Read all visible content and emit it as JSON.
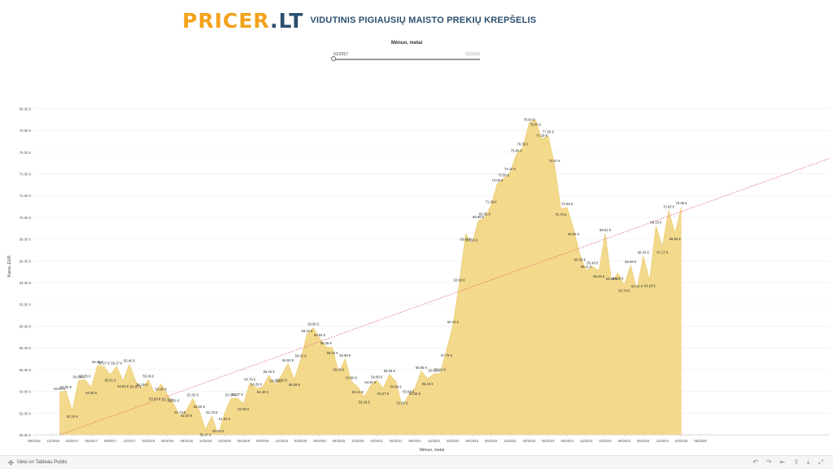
{
  "header": {
    "logo_part1": "PRICER",
    "logo_part2": ".LT",
    "subtitle": "VIDUTINIS PIGIAUSIŲ MAISTO PREKIŲ KREPŠELIS"
  },
  "filter": {
    "title": "Mėnuo, metai",
    "start": "01/2017",
    "end": "03/2025",
    "position": 0
  },
  "footer": {
    "link": "View on Tableau Public"
  },
  "chart_data": {
    "type": "area",
    "title": "",
    "xlabel": "Mėnuo, metai",
    "ylabel": "Kaina, EUR",
    "ylim": [
      50,
      81
    ],
    "yticks": [
      50,
      52,
      54,
      56,
      58,
      60,
      62,
      64,
      66,
      68,
      70,
      72,
      74,
      76,
      78,
      80
    ],
    "ytick_labels": [
      "50.00 €",
      "52.00 €",
      "54.00 €",
      "56.00 €",
      "58.00 €",
      "60.00 €",
      "62.00 €",
      "64.00 €",
      "66.00 €",
      "68.00 €",
      "70.00 €",
      "72.00 €",
      "74.00 €",
      "76.00 €",
      "78.00 €",
      "80.00 €"
    ],
    "xtick_labels": [
      "09/2016",
      "12/2016",
      "03/2017",
      "06/2017",
      "09/2017",
      "12/2017",
      "03/2018",
      "06/2018",
      "09/2018",
      "12/2018",
      "03/2019",
      "06/2019",
      "09/2019",
      "12/2019",
      "03/2020",
      "06/2020",
      "09/2020",
      "12/2020",
      "03/2021",
      "06/2021",
      "09/2021",
      "12/2021",
      "03/2022",
      "06/2022",
      "09/2022",
      "12/2022",
      "03/2023",
      "06/2023",
      "09/2023",
      "12/2023",
      "03/2024",
      "06/2024",
      "09/2024",
      "12/2024",
      "03/2025",
      "06/2025"
    ],
    "x_start": "01/2017",
    "x_end": "03/2025",
    "fill_color": "#f3d98b",
    "line_color": "#edcd74",
    "trend_color": "#e06070",
    "values": [
      53.89,
      54.05,
      52.16,
      54.99,
      55.05,
      54.36,
      56.36,
      56.27,
      55.51,
      56.27,
      54.93,
      56.46,
      54.9,
      54.25,
      55.06,
      53.8,
      54.69,
      53.71,
      52.81,
      51.74,
      52.26,
      53.32,
      52.25,
      50.47,
      51.73,
      50.0,
      51.94,
      53.34,
      53.37,
      52.86,
      54.76,
      54.29,
      54.4,
      55.46,
      54.59,
      55.5,
      56.53,
      55.08,
      56.91,
      59.22,
      59.85,
      58.84,
      58.08,
      58.02,
      55.66,
      56.98,
      54.9,
      54.41,
      53.48,
      54.5,
      54.99,
      54.27,
      55.55,
      54.89,
      52.6,
      53.64,
      54.26,
      55.85,
      55.16,
      55.59,
      55.64,
      57.79,
      60.03,
      63.9,
      68.47,
      67.56,
      69.69,
      69.95,
      71.08,
      73.08,
      73.56,
      74.1,
      75.8,
      76.39,
      78.64,
      79.0,
      77.19,
      77.5,
      74.87,
      70.76,
      70.89,
      68.94,
      66.59,
      65.11,
      65.48,
      65.06,
      68.51,
      63.99,
      64.88,
      63.74,
      65.56,
      63.31,
      66.43,
      64.18,
      69.19,
      67.27,
      70.63,
      68.5,
      70.96
    ],
    "label_sides": "aabaabaabababaabbbaabaabaabaabaabaababaaaaabaaabbaababaababaabaabaaaaaaaaaabaaababbaabaabbaaabababa"
  }
}
